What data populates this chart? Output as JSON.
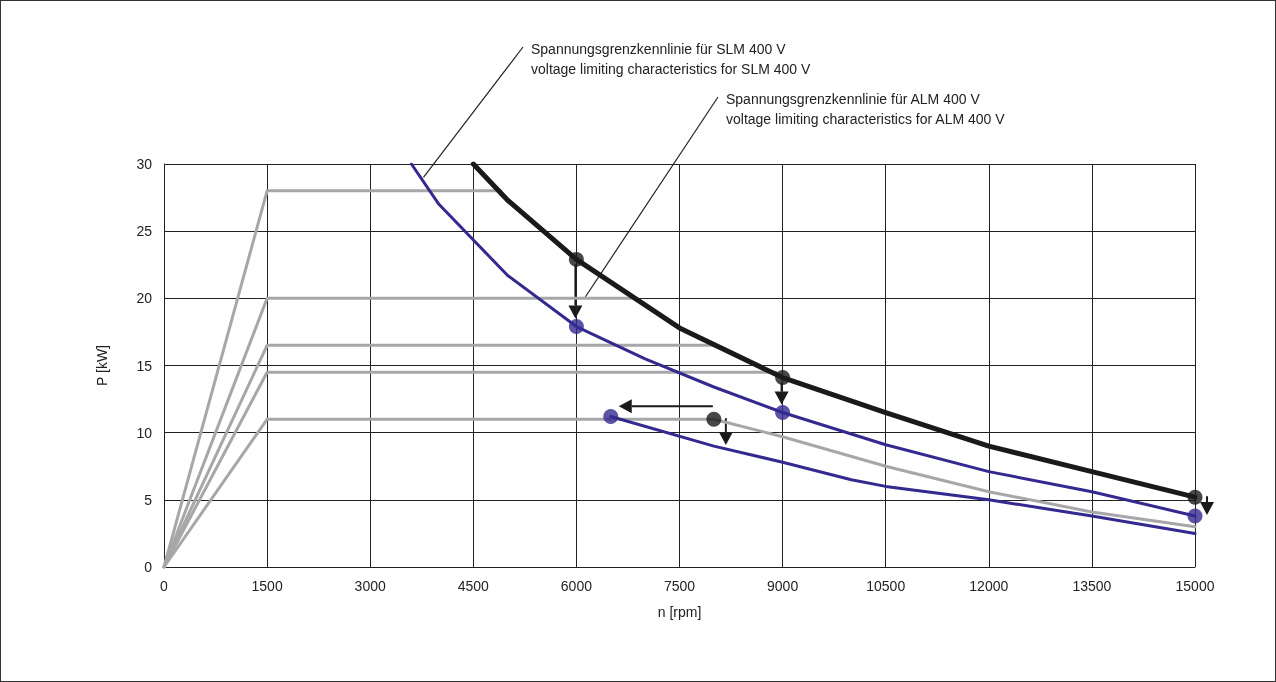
{
  "chart_data": {
    "type": "line",
    "xlabel": "n [rpm]",
    "ylabel": "P [kW]",
    "xlim": [
      0,
      15000
    ],
    "xticks": [
      0,
      1500,
      3000,
      4500,
      6000,
      7500,
      9000,
      10500,
      12000,
      13500,
      15000
    ],
    "ylim": [
      0,
      30
    ],
    "yticks": [
      0,
      5,
      10,
      15,
      20,
      25,
      30
    ],
    "grid": true,
    "marker": "none",
    "line_style": "solid",
    "series": [
      {
        "color": "#a7a7aa",
        "x": [
          0,
          1500,
          4900
        ],
        "values": [
          0,
          28,
          28
        ]
      },
      {
        "color": "#a7a7aa",
        "x": [
          0,
          1500,
          6800
        ],
        "values": [
          0,
          20,
          20
        ]
      },
      {
        "color": "#a7a7aa",
        "x": [
          0,
          1500,
          8000
        ],
        "values": [
          0,
          16.5,
          16.5
        ]
      },
      {
        "color": "#a7a7aa",
        "x": [
          0,
          1500,
          8900
        ],
        "values": [
          0,
          14.5,
          14.5
        ]
      },
      {
        "color": "#a7a7aa",
        "x": [
          0,
          1500,
          8000,
          9000,
          10500,
          12000,
          13500,
          15000
        ],
        "values": [
          0,
          11,
          11,
          9.7,
          7.5,
          5.6,
          4.1,
          3.0
        ]
      },
      {
        "color": "#1a1a1a",
        "x": [
          4500,
          5000,
          6000,
          7500,
          9000,
          10500,
          12000,
          13500,
          15000
        ],
        "values": [
          30,
          27.3,
          22.9,
          17.8,
          14.1,
          11.5,
          9.0,
          7.1,
          5.2
        ]
      },
      {
        "color": "#33298f",
        "x": [
          3600,
          4000,
          5000,
          6000,
          7000,
          8000,
          9000,
          10500,
          12000,
          13500,
          15000
        ],
        "values": [
          30,
          27,
          21.7,
          17.9,
          15.5,
          13.4,
          11.5,
          9.1,
          7.1,
          5.6,
          3.8
        ]
      },
      {
        "color": "#33298f",
        "x": [
          6500,
          8000,
          9000,
          10000,
          10500,
          12000,
          13500,
          15000
        ],
        "values": [
          11.2,
          9.0,
          7.8,
          6.5,
          6.0,
          5.0,
          3.8,
          2.5
        ]
      },
      {
        "type": "scatter",
        "marker": "circle",
        "color": "#1a1a1a",
        "x": [
          6000,
          9000,
          8000,
          15000
        ],
        "values": [
          22.9,
          14.1,
          11,
          5.2
        ]
      },
      {
        "type": "scatter",
        "marker": "circle",
        "color": "#33298f",
        "x": [
          6000,
          9000,
          6500,
          15000
        ],
        "values": [
          17.9,
          11.5,
          11.2,
          3.8
        ]
      }
    ],
    "annotations": [
      {
        "text": "Spannungsgrenzkennlinie für SLM 400 V\nvoltage limiting characteristics for SLM 400 V",
        "x": 3775,
        "y": 29
      },
      {
        "text": "Spannungsgrenzkennlinie für ALM 400 V\nvoltage limiting characteristics for ALM 400 V",
        "x": 6130,
        "y": 20.1
      }
    ]
  }
}
